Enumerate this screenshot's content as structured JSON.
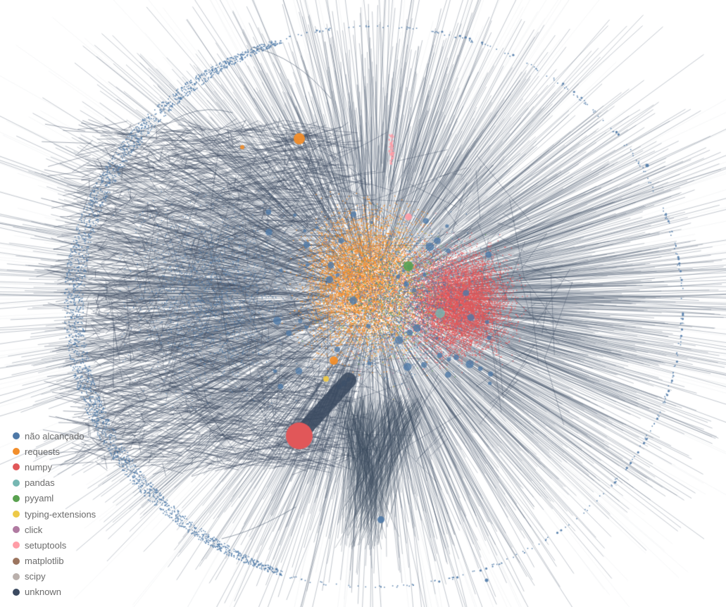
{
  "legend": {
    "items": [
      {
        "key": "nao-alcancado",
        "label": "não alcançado",
        "color": "#4e79a7"
      },
      {
        "key": "requests",
        "label": "requests",
        "color": "#f28e2b"
      },
      {
        "key": "numpy",
        "label": "numpy",
        "color": "#e15759"
      },
      {
        "key": "pandas",
        "label": "pandas",
        "color": "#76b7b2"
      },
      {
        "key": "pyyaml",
        "label": "pyyaml",
        "color": "#59a14f"
      },
      {
        "key": "typing-extensions",
        "label": "typing-extensions",
        "color": "#edc948"
      },
      {
        "key": "click",
        "label": "click",
        "color": "#b07aa1"
      },
      {
        "key": "setuptools",
        "label": "setuptools",
        "color": "#ff9da7"
      },
      {
        "key": "matplotlib",
        "label": "matplotlib",
        "color": "#9c755f"
      },
      {
        "key": "scipy",
        "label": "scipy",
        "color": "#bab0ac"
      },
      {
        "key": "unknown",
        "label": "unknown",
        "color": "#3b4a60"
      }
    ]
  },
  "graph": {
    "type": "force-directed network",
    "edge_color": "#3b4a60",
    "faded_edge_color": "#b9bfc9",
    "background": "#ffffff"
  }
}
